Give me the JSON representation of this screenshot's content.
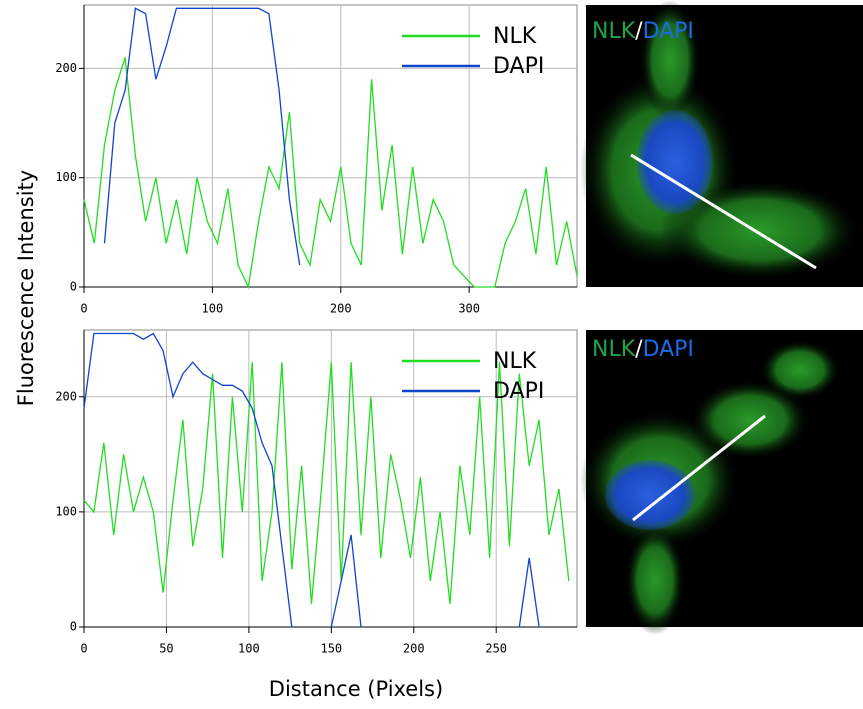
{
  "chart_data": [
    {
      "type": "line",
      "ylabel": "Fluorescence Intensity",
      "x": [
        0,
        8,
        16,
        24,
        32,
        40,
        48,
        56,
        64,
        72,
        80,
        88,
        96,
        104,
        112,
        120,
        128,
        136,
        144,
        152,
        160,
        168,
        176,
        184,
        192,
        200,
        208,
        216,
        224,
        232,
        240,
        248,
        256,
        264,
        272,
        280,
        288,
        296,
        304,
        312,
        320,
        328,
        336,
        344,
        352,
        360,
        368,
        376,
        384
      ],
      "series": [
        {
          "name": "NLK",
          "color": "#22dd22",
          "values": [
            80,
            40,
            130,
            180,
            210,
            120,
            60,
            100,
            40,
            80,
            30,
            100,
            60,
            40,
            90,
            20,
            0,
            60,
            110,
            90,
            160,
            40,
            20,
            80,
            60,
            110,
            40,
            20,
            190,
            70,
            130,
            30,
            110,
            40,
            80,
            60,
            20,
            10,
            0,
            0,
            0,
            40,
            60,
            90,
            30,
            110,
            20,
            60,
            10
          ]
        },
        {
          "name": "DAPI",
          "color": "#1144cc",
          "values": [
            null,
            null,
            40,
            150,
            180,
            255,
            250,
            190,
            220,
            255,
            255,
            255,
            255,
            255,
            255,
            255,
            255,
            255,
            250,
            180,
            80,
            20,
            null,
            null,
            null,
            null,
            null,
            null,
            null,
            null,
            null,
            null,
            null,
            null,
            null,
            null,
            null,
            null,
            null,
            null,
            null,
            null,
            null,
            null,
            null,
            null,
            null,
            null,
            null
          ]
        }
      ],
      "xlim": [
        0,
        384
      ],
      "ylim": [
        0,
        258
      ],
      "xticks": [
        0,
        100,
        200,
        300
      ],
      "yticks": [
        0,
        100,
        200
      ],
      "grid": true,
      "legend": "upper right",
      "image_label": [
        "NLK",
        "/",
        "DAPI"
      ]
    },
    {
      "type": "line",
      "xlabel": "Distance (Pixels)",
      "x": [
        0,
        6,
        12,
        18,
        24,
        30,
        36,
        42,
        48,
        54,
        60,
        66,
        72,
        78,
        84,
        90,
        96,
        102,
        108,
        114,
        120,
        126,
        132,
        138,
        144,
        150,
        156,
        162,
        168,
        174,
        180,
        186,
        192,
        198,
        204,
        210,
        216,
        222,
        228,
        234,
        240,
        246,
        252,
        258,
        264,
        270,
        276,
        282,
        288,
        294
      ],
      "series": [
        {
          "name": "NLK",
          "color": "#22dd22",
          "values": [
            110,
            100,
            160,
            80,
            150,
            100,
            130,
            100,
            30,
            110,
            180,
            70,
            120,
            220,
            60,
            200,
            100,
            230,
            40,
            100,
            230,
            50,
            140,
            20,
            120,
            230,
            40,
            230,
            80,
            200,
            60,
            150,
            110,
            60,
            130,
            40,
            100,
            20,
            140,
            80,
            200,
            60,
            230,
            70,
            220,
            140,
            180,
            80,
            120,
            40
          ]
        },
        {
          "name": "DAPI",
          "color": "#1144cc",
          "values": [
            190,
            255,
            255,
            255,
            255,
            255,
            250,
            255,
            240,
            200,
            220,
            230,
            220,
            215,
            210,
            210,
            205,
            190,
            160,
            140,
            70,
            0,
            null,
            null,
            null,
            0,
            40,
            80,
            0,
            null,
            null,
            null,
            null,
            null,
            null,
            null,
            null,
            null,
            null,
            null,
            null,
            null,
            null,
            null,
            0,
            60,
            0,
            null,
            null,
            null
          ]
        }
      ],
      "xlim": [
        0,
        299
      ],
      "ylim": [
        0,
        258
      ],
      "xticks": [
        0,
        50,
        100,
        150,
        200,
        250
      ],
      "yticks": [
        0,
        100,
        200
      ],
      "grid": true,
      "legend": "upper right",
      "image_label": [
        "NLK",
        "/",
        "DAPI"
      ]
    }
  ]
}
